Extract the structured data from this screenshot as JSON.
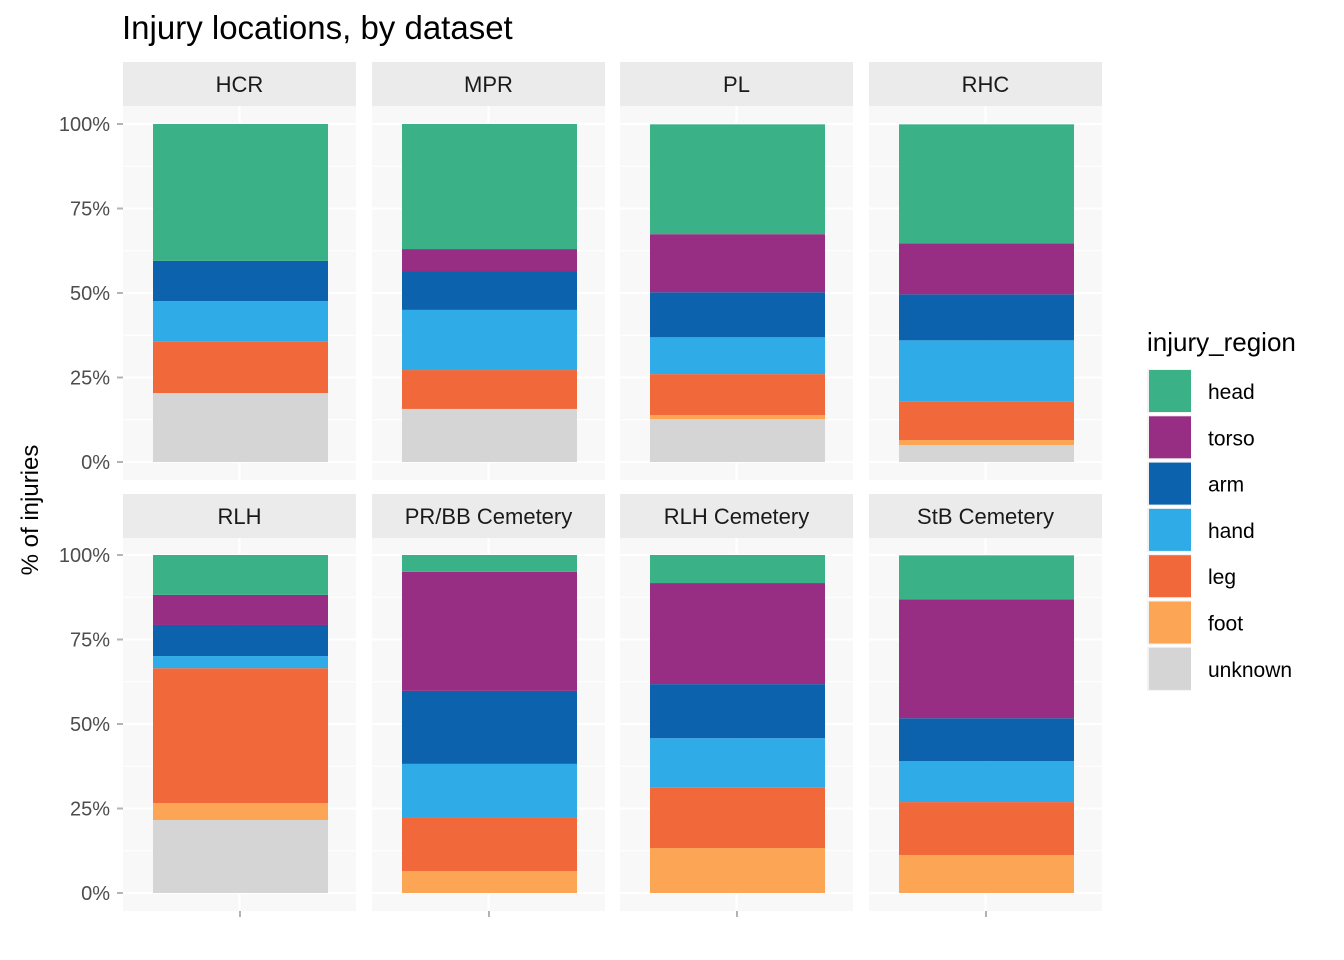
{
  "chart_data": {
    "type": "bar",
    "subtype": "stacked-percent, faceted",
    "title": "Injury locations, by dataset",
    "xlabel": "",
    "ylabel": "% of injuries",
    "ylim": [
      0,
      100
    ],
    "y_ticks": [
      "0%",
      "25%",
      "50%",
      "75%",
      "100%"
    ],
    "y_tick_values": [
      0,
      25,
      50,
      75,
      100
    ],
    "grid": true,
    "facet_layout": "2 rows x 4 columns",
    "legend": {
      "title": "injury_region",
      "position": "right",
      "entries": [
        {
          "label": "head",
          "color": "#3bb187"
        },
        {
          "label": "torso",
          "color": "#982d84"
        },
        {
          "label": "arm",
          "color": "#0d62ad"
        },
        {
          "label": "hand",
          "color": "#2fabe8"
        },
        {
          "label": "leg",
          "color": "#f1683b"
        },
        {
          "label": "foot",
          "color": "#fba555"
        },
        {
          "label": "unknown",
          "color": "#d5d5d5"
        }
      ]
    },
    "facets": [
      {
        "name": "HCR",
        "values": {
          "head": 40.5,
          "torso": 0,
          "arm": 11.9,
          "hand": 12.0,
          "leg": 15.2,
          "foot": 0,
          "unknown": 20.4
        }
      },
      {
        "name": "MPR",
        "values": {
          "head": 37.0,
          "torso": 6.5,
          "arm": 11.5,
          "hand": 17.8,
          "leg": 11.5,
          "foot": 0,
          "unknown": 15.7
        }
      },
      {
        "name": "PL",
        "values": {
          "head": 32.5,
          "torso": 17.2,
          "arm": 13.3,
          "hand": 10.9,
          "leg": 12.1,
          "foot": 1.2,
          "unknown": 12.7
        }
      },
      {
        "name": "RHC",
        "values": {
          "head": 35.2,
          "torso": 15.1,
          "arm": 13.6,
          "hand": 18.0,
          "leg": 11.5,
          "foot": 1.5,
          "unknown": 5.0
        }
      },
      {
        "name": "RLH",
        "values": {
          "head": 11.8,
          "torso": 8.9,
          "arm": 9.2,
          "hand": 3.6,
          "leg": 39.9,
          "foot": 5.0,
          "unknown": 21.6
        }
      },
      {
        "name": "PR/BB Cemetery",
        "values": {
          "head": 5.0,
          "torso": 35.2,
          "arm": 21.6,
          "hand": 16.0,
          "leg": 15.7,
          "foot": 6.5,
          "unknown": 0
        }
      },
      {
        "name": "RLH Cemetery",
        "values": {
          "head": 8.3,
          "torso": 29.9,
          "arm": 16.0,
          "hand": 14.5,
          "leg": 18.0,
          "foot": 13.3,
          "unknown": 0
        }
      },
      {
        "name": "StB Cemetery",
        "values": {
          "head": 13.0,
          "torso": 35.2,
          "arm": 12.7,
          "hand": 12.1,
          "leg": 15.7,
          "foot": 11.2,
          "unknown": 0
        }
      }
    ]
  }
}
